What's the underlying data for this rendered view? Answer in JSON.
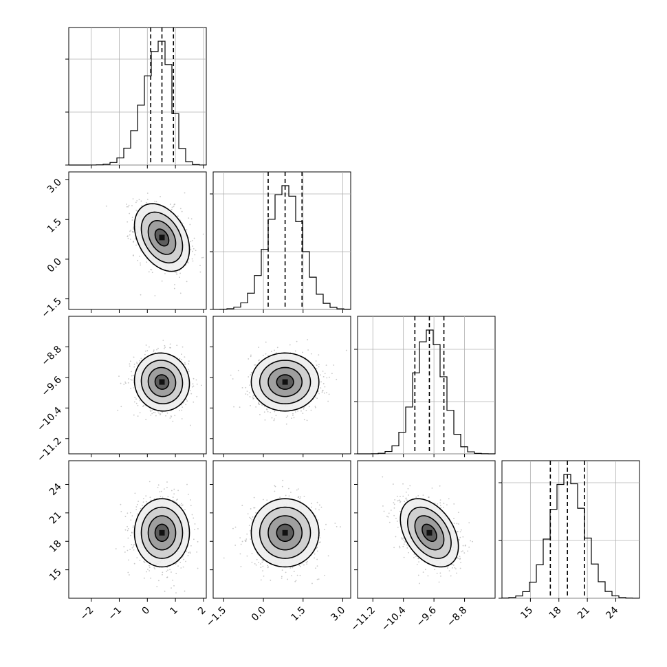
{
  "chart_data": {
    "type": "corner",
    "title": "",
    "grid": true,
    "parameters": [
      {
        "label": "",
        "range": [
          -2.8,
          2.1
        ],
        "ticks": [
          -2,
          -1,
          0,
          1,
          2
        ],
        "tick_labels": [
          "−2",
          "−1",
          "0",
          "1",
          "2"
        ],
        "quantiles": [
          0.12,
          0.52,
          0.93
        ],
        "tail_sigma_left": 0.62,
        "tail_sigma_right": 0.36
      },
      {
        "label": "",
        "range": [
          -1.9,
          3.3
        ],
        "ticks": [
          -1.5,
          0.0,
          1.5,
          3.0
        ],
        "tick_labels": [
          "−1.5",
          "0.0",
          "1.5",
          "3.0"
        ],
        "quantiles": [
          0.18,
          0.82,
          1.46
        ],
        "tail_sigma_left": 0.64,
        "tail_sigma_right": 0.64
      },
      {
        "label": "",
        "range": [
          -11.6,
          -8.0
        ],
        "ticks": [
          -11.2,
          -10.4,
          -9.6,
          -8.8
        ],
        "tick_labels": [
          "−11.2",
          "−10.4",
          "−9.6",
          "−8.8"
        ],
        "quantiles": [
          -10.1,
          -9.72,
          -9.34
        ],
        "tail_sigma_left": 0.38,
        "tail_sigma_right": 0.38
      },
      {
        "label": "",
        "range": [
          12.0,
          26.5
        ],
        "ticks": [
          15,
          18,
          21,
          24
        ],
        "tick_labels": [
          "15",
          "18",
          "21",
          "24"
        ],
        "quantiles": [
          17.1,
          18.9,
          20.7
        ],
        "tail_sigma_left": 1.8,
        "tail_sigma_right": 1.8
      }
    ],
    "hist_ticks": [
      [
        0,
        0.385,
        0.77
      ],
      [
        0,
        0.42,
        0.84
      ],
      [
        0,
        0.38,
        0.76
      ],
      [
        0,
        0.42,
        0.84
      ]
    ],
    "correlations": [
      [
        1.0,
        -0.35,
        -0.05,
        0.0
      ],
      [
        -0.35,
        1.0,
        0.0,
        0.0
      ],
      [
        -0.05,
        0.0,
        1.0,
        -0.4
      ],
      [
        0.0,
        0.0,
        -0.4,
        1.0
      ]
    ],
    "contour_levels_sigma": [
      0.5,
      1.0,
      1.5,
      2.0
    ],
    "hist_bins": 20,
    "line_style": "dashed"
  }
}
